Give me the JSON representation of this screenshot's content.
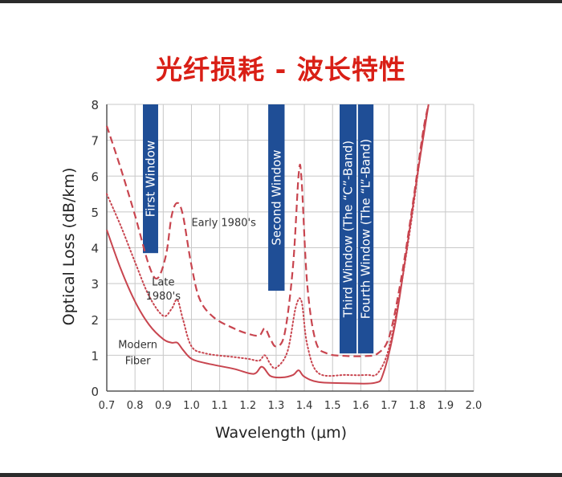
{
  "slide": {
    "title": "光纤损耗 - 波长特性"
  },
  "colors": {
    "curve": "#c8454f",
    "window_bar": "#1f4e96",
    "grid": "#c8c8c8",
    "title": "#d91f16",
    "frame": "#2b2b2b"
  },
  "chart_data": {
    "type": "line",
    "title": "",
    "xlabel": "Wavelength (μm)",
    "ylabel": "Optical Loss (dB/km)",
    "xlim": [
      0.7,
      2.0
    ],
    "ylim": [
      0,
      8
    ],
    "x_ticks": [
      "0.7",
      "0.8",
      "0.9",
      "1.0",
      "1.1",
      "1.2",
      "1.3",
      "1.4",
      "1.5",
      "1.6",
      "1.7",
      "1.8",
      "1.9",
      "2.0"
    ],
    "y_ticks": [
      "0",
      "1",
      "2",
      "3",
      "4",
      "5",
      "6",
      "7",
      "8"
    ],
    "grid": true,
    "series": [
      {
        "name": "Early 1980's",
        "style": "dashed",
        "points": [
          [
            0.7,
            7.4
          ],
          [
            0.75,
            6.2
          ],
          [
            0.8,
            4.9
          ],
          [
            0.85,
            3.5
          ],
          [
            0.88,
            3.15
          ],
          [
            0.91,
            3.8
          ],
          [
            0.93,
            4.9
          ],
          [
            0.95,
            5.25
          ],
          [
            0.97,
            4.9
          ],
          [
            1.0,
            3.5
          ],
          [
            1.03,
            2.55
          ],
          [
            1.08,
            2.05
          ],
          [
            1.15,
            1.75
          ],
          [
            1.2,
            1.6
          ],
          [
            1.24,
            1.55
          ],
          [
            1.26,
            1.75
          ],
          [
            1.28,
            1.45
          ],
          [
            1.3,
            1.25
          ],
          [
            1.33,
            1.6
          ],
          [
            1.36,
            3.5
          ],
          [
            1.38,
            6.05
          ],
          [
            1.39,
            5.9
          ],
          [
            1.41,
            3.0
          ],
          [
            1.44,
            1.4
          ],
          [
            1.48,
            1.05
          ],
          [
            1.55,
            0.98
          ],
          [
            1.62,
            0.98
          ],
          [
            1.66,
            1.05
          ],
          [
            1.7,
            1.5
          ],
          [
            1.74,
            3.0
          ],
          [
            1.78,
            5.0
          ],
          [
            1.82,
            7.2
          ],
          [
            1.84,
            8.0
          ]
        ]
      },
      {
        "name": "Late 1980's",
        "style": "dotted",
        "points": [
          [
            0.7,
            5.5
          ],
          [
            0.75,
            4.6
          ],
          [
            0.8,
            3.6
          ],
          [
            0.85,
            2.65
          ],
          [
            0.9,
            2.1
          ],
          [
            0.93,
            2.3
          ],
          [
            0.95,
            2.55
          ],
          [
            0.97,
            2.0
          ],
          [
            1.0,
            1.25
          ],
          [
            1.05,
            1.05
          ],
          [
            1.15,
            0.95
          ],
          [
            1.2,
            0.9
          ],
          [
            1.24,
            0.85
          ],
          [
            1.26,
            1.0
          ],
          [
            1.28,
            0.75
          ],
          [
            1.3,
            0.65
          ],
          [
            1.34,
            1.1
          ],
          [
            1.37,
            2.35
          ],
          [
            1.39,
            2.5
          ],
          [
            1.41,
            1.3
          ],
          [
            1.45,
            0.5
          ],
          [
            1.55,
            0.45
          ],
          [
            1.62,
            0.45
          ],
          [
            1.66,
            0.5
          ],
          [
            1.7,
            1.2
          ],
          [
            1.74,
            2.8
          ],
          [
            1.78,
            4.8
          ],
          [
            1.82,
            7.1
          ],
          [
            1.84,
            8.0
          ]
        ]
      },
      {
        "name": "Modern Fiber",
        "style": "solid",
        "points": [
          [
            0.7,
            4.5
          ],
          [
            0.75,
            3.4
          ],
          [
            0.8,
            2.5
          ],
          [
            0.85,
            1.85
          ],
          [
            0.9,
            1.45
          ],
          [
            0.93,
            1.35
          ],
          [
            0.95,
            1.35
          ],
          [
            0.97,
            1.15
          ],
          [
            1.0,
            0.9
          ],
          [
            1.05,
            0.78
          ],
          [
            1.15,
            0.62
          ],
          [
            1.22,
            0.48
          ],
          [
            1.25,
            0.68
          ],
          [
            1.28,
            0.42
          ],
          [
            1.32,
            0.38
          ],
          [
            1.36,
            0.45
          ],
          [
            1.38,
            0.58
          ],
          [
            1.4,
            0.4
          ],
          [
            1.45,
            0.25
          ],
          [
            1.55,
            0.22
          ],
          [
            1.65,
            0.23
          ],
          [
            1.68,
            0.5
          ],
          [
            1.72,
            1.8
          ],
          [
            1.76,
            3.8
          ],
          [
            1.8,
            6.0
          ],
          [
            1.84,
            8.0
          ]
        ]
      }
    ],
    "annotations": [
      {
        "id": "early",
        "text": "Early 1980's",
        "x": 1.0,
        "y": 4.6
      },
      {
        "id": "late1",
        "text": "Late",
        "x": 0.9,
        "y": 2.95
      },
      {
        "id": "late2",
        "text": "1980's",
        "x": 0.9,
        "y": 2.55
      },
      {
        "id": "modern1",
        "text": "Modern",
        "x": 0.81,
        "y": 1.2
      },
      {
        "id": "modern2",
        "text": "Fiber",
        "x": 0.81,
        "y": 0.75
      }
    ],
    "windows": [
      {
        "label": "First Window",
        "x0": 0.828,
        "x1": 0.882,
        "ybottom": 3.85
      },
      {
        "label": "Second Window",
        "x0": 1.272,
        "x1": 1.33,
        "ybottom": 2.8
      },
      {
        "label": "Third Window (The “C”-Band)",
        "x0": 1.525,
        "x1": 1.585,
        "ybottom": 1.05
      },
      {
        "label": "Fourth Window (The “L”-Band)",
        "x0": 1.59,
        "x1": 1.645,
        "ybottom": 1.05
      }
    ]
  }
}
